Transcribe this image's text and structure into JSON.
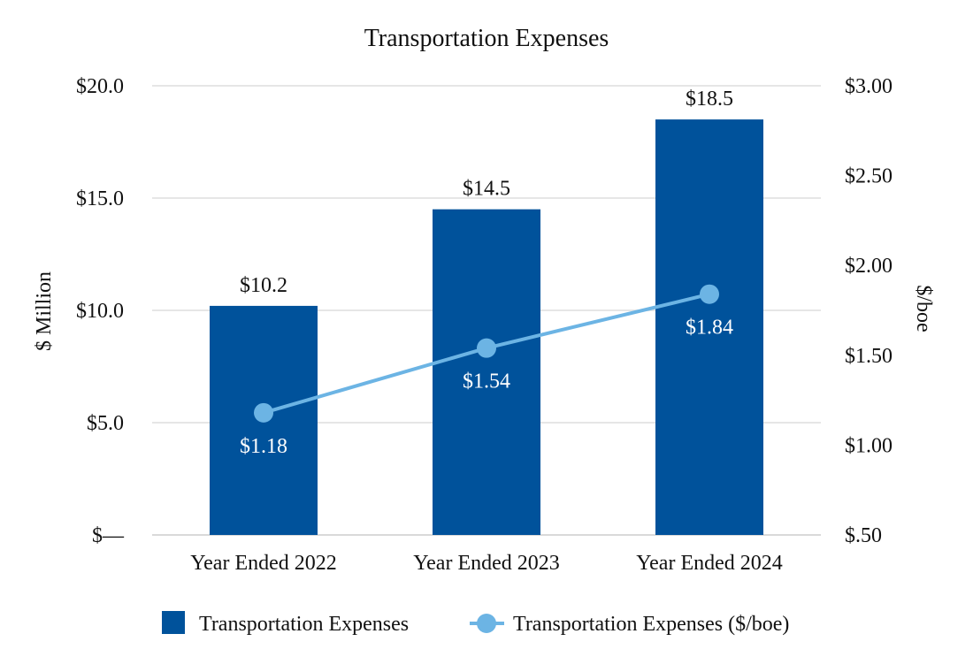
{
  "chart_data": {
    "type": "bar",
    "title": "Transportation Expenses",
    "categories": [
      "Year Ended 2022",
      "Year Ended 2023",
      "Year Ended 2024"
    ],
    "ylabel": "$ Million",
    "y2label": "$/boe",
    "ylim": [
      0,
      20
    ],
    "y2lim": [
      0.5,
      3.0
    ],
    "y_ticks": [
      "$—",
      "$5.0",
      "$10.0",
      "$15.0",
      "$20.0"
    ],
    "y2_ticks": [
      "$.50",
      "$1.00",
      "$1.50",
      "$2.00",
      "$2.50",
      "$3.00"
    ],
    "grid": true,
    "legend_position": "bottom",
    "series": [
      {
        "name": "Transportation Expenses",
        "type": "bar",
        "axis": "left",
        "color": "#00529B",
        "values": [
          10.2,
          14.5,
          18.5
        ],
        "labels": [
          "$10.2",
          "$14.5",
          "$18.5"
        ]
      },
      {
        "name": "Transportation Expenses ($/boe)",
        "type": "line",
        "axis": "right",
        "color": "#6CB4E4",
        "values": [
          1.18,
          1.54,
          1.84
        ],
        "labels": [
          "$1.18",
          "$1.54",
          "$1.84"
        ]
      }
    ]
  }
}
